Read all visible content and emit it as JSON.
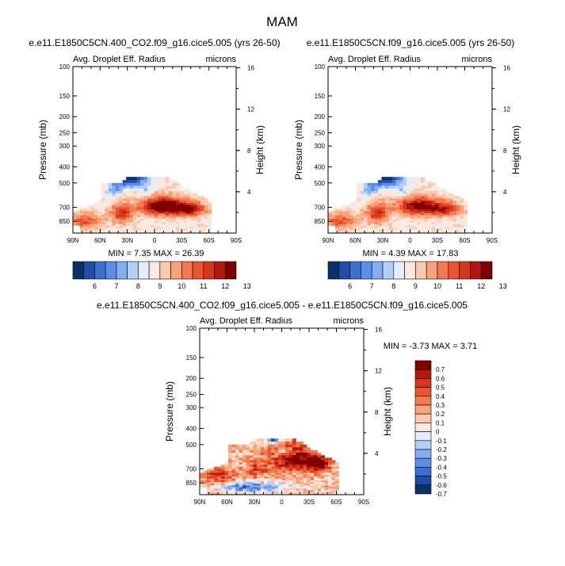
{
  "figure": {
    "title": "MAM"
  },
  "colors": {
    "cbar1": [
      "#08306b",
      "#1f4ea8",
      "#3b6fd0",
      "#5b8ee8",
      "#85aef2",
      "#b3cff8",
      "#e3eefc",
      "#fde9dc",
      "#fbc9ad",
      "#f8a27b",
      "#f37a50",
      "#ea5530",
      "#d8361c",
      "#b3180d",
      "#800000"
    ],
    "cbar3": [
      "#08306b",
      "#1f4ea8",
      "#3b6fd0",
      "#5b8ee8",
      "#85aef2",
      "#b3cff8",
      "#e3eefc",
      "#fde9dc",
      "#fbc9ad",
      "#f8a27b",
      "#f37a50",
      "#ea5530",
      "#d8361c",
      "#b3180d",
      "#800000"
    ]
  },
  "chart_data": [
    {
      "type": "heatmap",
      "title": "e.e11.E1850C5CN.400_CO2.f09_g16.cice5.005 (yrs 26-50)",
      "left_label": "Avg. Droplet Eff. Radius",
      "right_label": "microns",
      "xlabel": "",
      "ylabel": "Pressure (mb)",
      "y2label": "Height (km)",
      "x_ticks": [
        "90N",
        "60N",
        "30N",
        "0",
        "30S",
        "60S",
        "90S"
      ],
      "y_ticks": [
        "100",
        "150",
        "200",
        "250",
        "300",
        "400",
        "500",
        "700",
        "850"
      ],
      "y_tick_values": [
        100,
        150,
        200,
        250,
        300,
        400,
        500,
        700,
        850
      ],
      "y2_ticks": [
        "16",
        "12",
        "8",
        "4"
      ],
      "y2_tick_values": [
        16,
        12,
        8,
        4
      ],
      "ylim": [
        100,
        1000
      ],
      "min_max": "MIN =  7.35  MAX =  26.39",
      "field": "positive",
      "colorbar_labels": [
        "6",
        "7",
        "8",
        "9",
        "10",
        "11",
        "12",
        "13"
      ],
      "colorbar_levels": [
        5.5,
        6,
        6.5,
        7,
        7.5,
        8,
        8.5,
        9,
        9.5,
        10,
        10.5,
        11,
        11.5,
        12,
        12.5,
        13,
        13.5
      ]
    },
    {
      "type": "heatmap",
      "title": "e.e11.E1850C5CN.f09_g16.cice5.005 (yrs 26-50)",
      "left_label": "Avg. Droplet Eff. Radius",
      "right_label": "microns",
      "xlabel": "",
      "ylabel": "Pressure (mb)",
      "y2label": "Height (km)",
      "x_ticks": [
        "90N",
        "60N",
        "30N",
        "0",
        "30S",
        "60S",
        "90S"
      ],
      "y_ticks": [
        "100",
        "150",
        "200",
        "250",
        "300",
        "400",
        "500",
        "700",
        "850"
      ],
      "y_tick_values": [
        100,
        150,
        200,
        250,
        300,
        400,
        500,
        700,
        850
      ],
      "y2_ticks": [
        "16",
        "12",
        "8",
        "4"
      ],
      "y2_tick_values": [
        16,
        12,
        8,
        4
      ],
      "ylim": [
        100,
        1000
      ],
      "min_max": "MIN =  4.39  MAX =  17.83",
      "field": "positive",
      "colorbar_labels": [
        "6",
        "7",
        "8",
        "9",
        "10",
        "11",
        "12",
        "13"
      ],
      "colorbar_levels": [
        5.5,
        6,
        6.5,
        7,
        7.5,
        8,
        8.5,
        9,
        9.5,
        10,
        10.5,
        11,
        11.5,
        12,
        12.5,
        13,
        13.5
      ]
    },
    {
      "type": "heatmap",
      "title": "e.e11.E1850C5CN.400_CO2.f09_g16.cice5.005 - e.e11.E1850C5CN.f09_g16.cice5.005",
      "left_label": "Avg. Droplet Eff. Radius",
      "right_label": "microns",
      "xlabel": "",
      "ylabel": "Pressure (mb)",
      "y2label": "Height (km)",
      "x_ticks": [
        "90N",
        "60N",
        "30N",
        "0",
        "30S",
        "60S",
        "90S"
      ],
      "y_ticks": [
        "100",
        "150",
        "200",
        "250",
        "300",
        "400",
        "500",
        "700",
        "850"
      ],
      "y_tick_values": [
        100,
        150,
        200,
        250,
        300,
        400,
        500,
        700,
        850
      ],
      "y2_ticks": [
        "16",
        "12",
        "8",
        "4"
      ],
      "y2_tick_values": [
        16,
        12,
        8,
        4
      ],
      "ylim": [
        100,
        1000
      ],
      "min_max": "MIN = -3.73  MAX =  3.71",
      "field": "difference",
      "colorbar_labels": [
        "0.7",
        "0.6",
        "0.5",
        "0.4",
        "0.3",
        "0.2",
        "0.1",
        "0",
        "-0.1",
        "-0.2",
        "-0.3",
        "-0.4",
        "-0.5",
        "-0.6",
        "-0.7"
      ],
      "colorbar_levels": [
        -0.75,
        -0.7,
        -0.6,
        -0.5,
        -0.4,
        -0.3,
        -0.2,
        -0.1,
        0,
        0.1,
        0.2,
        0.3,
        0.4,
        0.5,
        0.6,
        0.7,
        0.75
      ]
    }
  ]
}
